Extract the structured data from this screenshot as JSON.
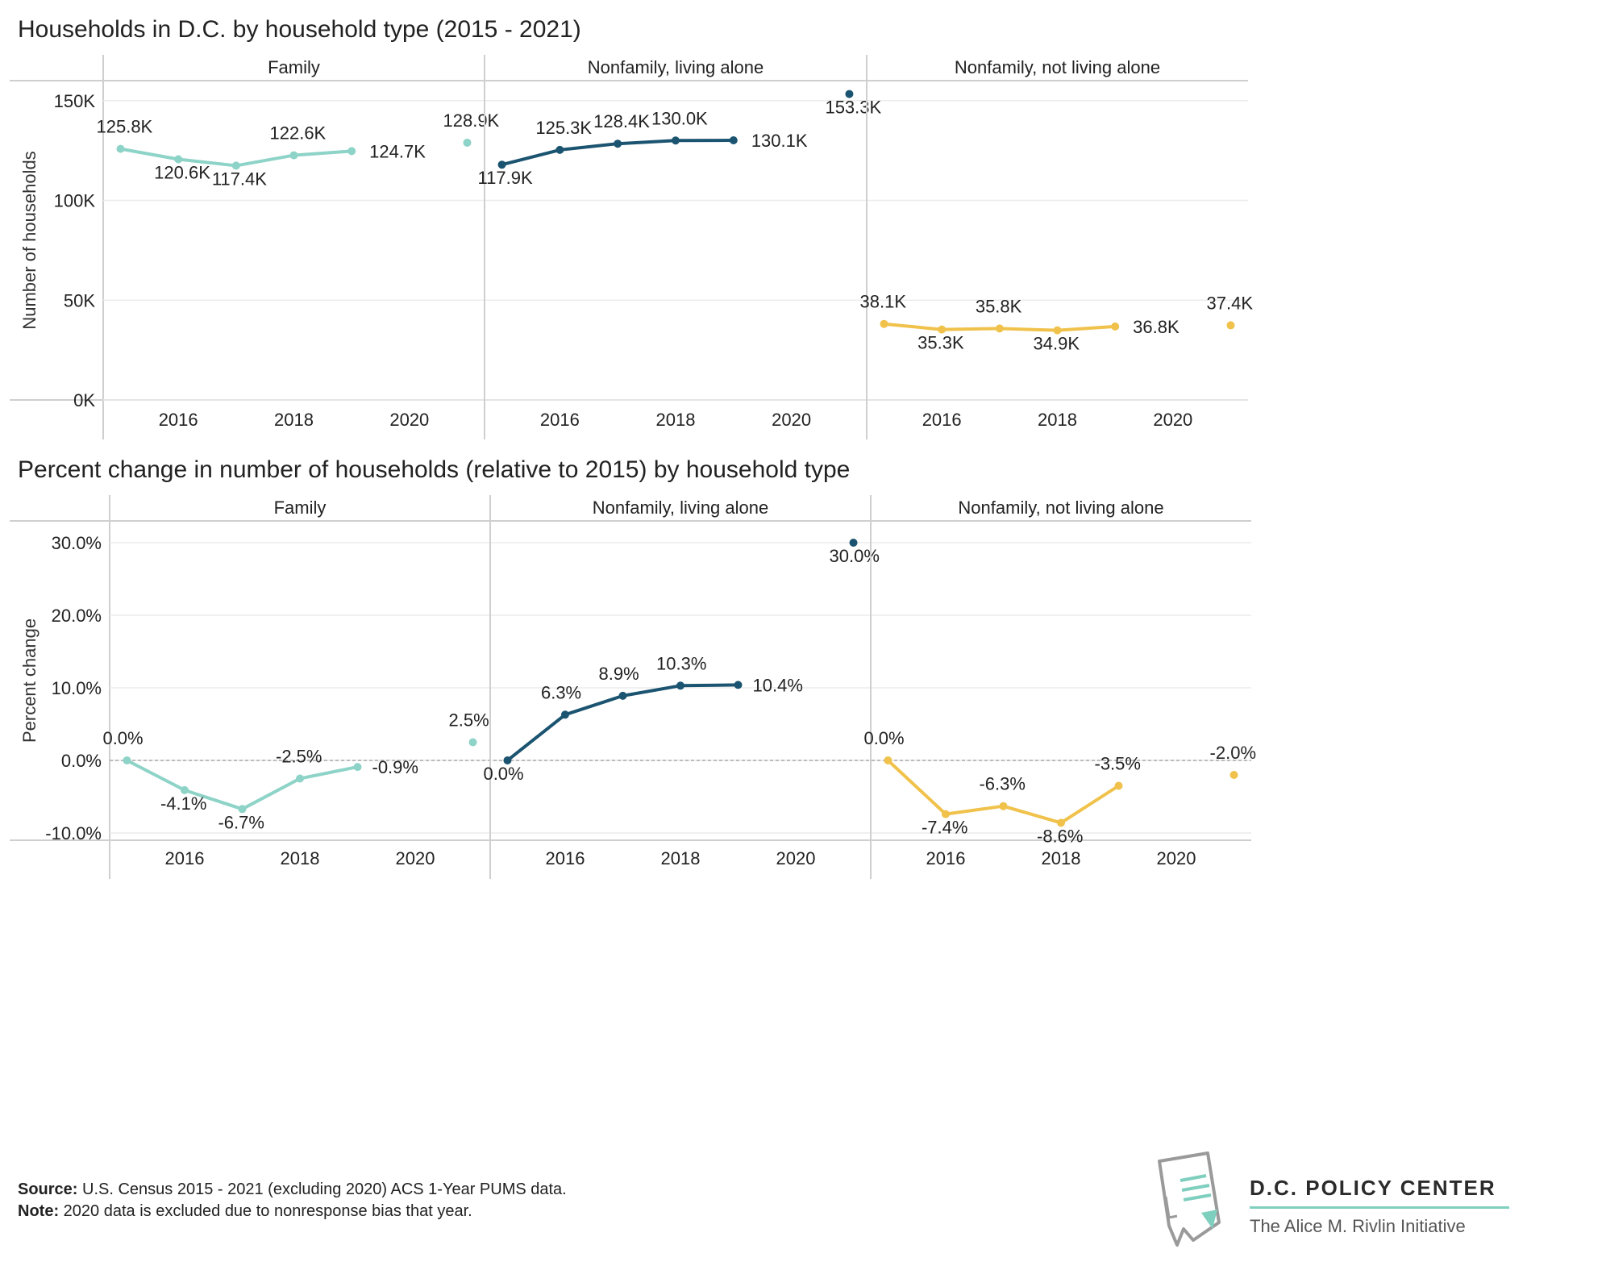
{
  "chart_data": [
    {
      "type": "line",
      "title": "Households in D.C. by household type (2015 - 2021)",
      "ylabel": "Number of households",
      "ylim": [
        0,
        160000
      ],
      "yticks": [
        0,
        50000,
        100000,
        150000
      ],
      "ytick_labels": [
        "0K",
        "50K",
        "100K",
        "150K"
      ],
      "xlim": [
        2014.7,
        2021.3
      ],
      "xticks": [
        2016,
        2018,
        2020
      ],
      "xtick_labels": [
        "2016",
        "2018",
        "2020"
      ],
      "grid": true,
      "panels": [
        {
          "name": "Family",
          "color": "#8dd3c7",
          "x": [
            2015,
            2016,
            2017,
            2018,
            2019
          ],
          "values": [
            125800,
            120600,
            117400,
            122600,
            124700
          ],
          "labels": [
            "125.8K",
            "120.6K",
            "117.4K",
            "122.6K",
            "124.7K"
          ],
          "extra": {
            "x": 2021,
            "value": 128900,
            "label": "128.9K"
          }
        },
        {
          "name": "Nonfamily, living alone",
          "color": "#1b5470",
          "x": [
            2015,
            2016,
            2017,
            2018,
            2019
          ],
          "values": [
            117900,
            125300,
            128400,
            130000,
            130100
          ],
          "labels": [
            "117.9K",
            "125.3K",
            "128.4K",
            "130.0K",
            "130.1K"
          ],
          "extra": {
            "x": 2021,
            "value": 153300,
            "label": "153.3K"
          }
        },
        {
          "name": "Nonfamily, not living alone",
          "color": "#f0c24b",
          "x": [
            2015,
            2016,
            2017,
            2018,
            2019
          ],
          "values": [
            38100,
            35300,
            35800,
            34900,
            36800
          ],
          "labels": [
            "38.1K",
            "35.3K",
            "35.8K",
            "34.9K",
            "36.8K"
          ],
          "extra": {
            "x": 2021,
            "value": 37400,
            "label": "37.4K"
          }
        }
      ]
    },
    {
      "type": "line",
      "title": "Percent change in number of households (relative to 2015) by household type",
      "ylabel": "Percent change",
      "ylim": [
        -11,
        33
      ],
      "yticks": [
        -10,
        0,
        10,
        20,
        30
      ],
      "ytick_labels": [
        "-10.0%",
        "0.0%",
        "10.0%",
        "20.0%",
        "30.0%"
      ],
      "xlim": [
        2014.7,
        2021.3
      ],
      "xticks": [
        2016,
        2018,
        2020
      ],
      "xtick_labels": [
        "2016",
        "2018",
        "2020"
      ],
      "grid": true,
      "zero_line": true,
      "panels": [
        {
          "name": "Family",
          "color": "#8dd3c7",
          "x": [
            2015,
            2016,
            2017,
            2018,
            2019
          ],
          "values": [
            0.0,
            -4.1,
            -6.7,
            -2.5,
            -0.9
          ],
          "labels": [
            "0.0%",
            "-4.1%",
            "-6.7%",
            "-2.5%",
            "-0.9%"
          ],
          "extra": {
            "x": 2021,
            "value": 2.5,
            "label": "2.5%"
          }
        },
        {
          "name": "Nonfamily, living alone",
          "color": "#1b5470",
          "x": [
            2015,
            2016,
            2017,
            2018,
            2019
          ],
          "values": [
            0.0,
            6.3,
            8.9,
            10.3,
            10.4
          ],
          "labels": [
            "0.0%",
            "6.3%",
            "8.9%",
            "10.3%",
            "10.4%"
          ],
          "extra": {
            "x": 2021,
            "value": 30.0,
            "label": "30.0%"
          }
        },
        {
          "name": "Nonfamily, not living alone",
          "color": "#f0c24b",
          "x": [
            2015,
            2016,
            2017,
            2018,
            2019
          ],
          "values": [
            0.0,
            -7.4,
            -6.3,
            -8.6,
            -3.5
          ],
          "labels": [
            "0.0%",
            "-7.4%",
            "-6.3%",
            "-8.6%",
            "-3.5%"
          ],
          "extra": {
            "x": 2021,
            "value": -2.0,
            "label": "-2.0%"
          }
        }
      ]
    }
  ],
  "footer": {
    "source_label": "Source:",
    "source_text": " U.S. Census 2015 - 2021 (excluding 2020) ACS 1-Year PUMS data.",
    "note_label": "Note:",
    "note_text": " 2020 data is excluded due to nonresponse bias that year."
  },
  "brand": {
    "name": "D.C. POLICY CENTER",
    "subtitle": "The Alice M. Rivlin Initiative",
    "accent": "#7fcfbf"
  }
}
